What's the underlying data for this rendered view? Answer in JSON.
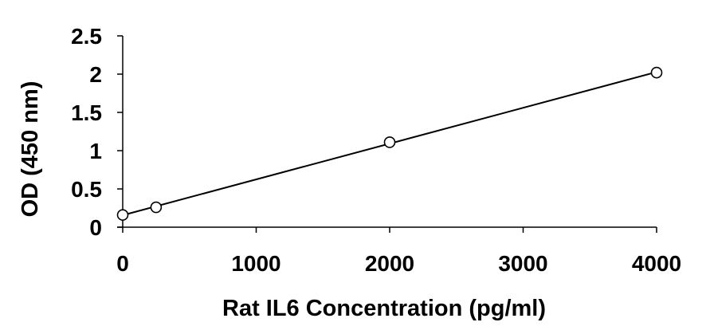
{
  "chart_data": {
    "type": "scatter",
    "title": "",
    "xlabel": "Rat IL6 Concentration (pg/ml)",
    "ylabel": "OD (450 nm)",
    "xlim": [
      0,
      4000
    ],
    "ylim": [
      0,
      2.5
    ],
    "x_ticks": [
      0,
      1000,
      2000,
      3000,
      4000
    ],
    "x_tick_labels": [
      "0",
      "1000",
      "2000",
      "3000",
      "4000"
    ],
    "y_ticks": [
      0,
      0.5,
      1,
      1.5,
      2,
      2.5
    ],
    "y_tick_labels": [
      "0",
      "0.5",
      "1",
      "1.5",
      "2",
      "2.5"
    ],
    "grid": false,
    "legend": "none",
    "series": [
      {
        "x": [
          0,
          250,
          2000,
          4000
        ],
        "y": [
          0.16,
          0.26,
          1.11,
          2.02
        ],
        "marker": "open-circle",
        "trendline": "linear"
      }
    ]
  }
}
